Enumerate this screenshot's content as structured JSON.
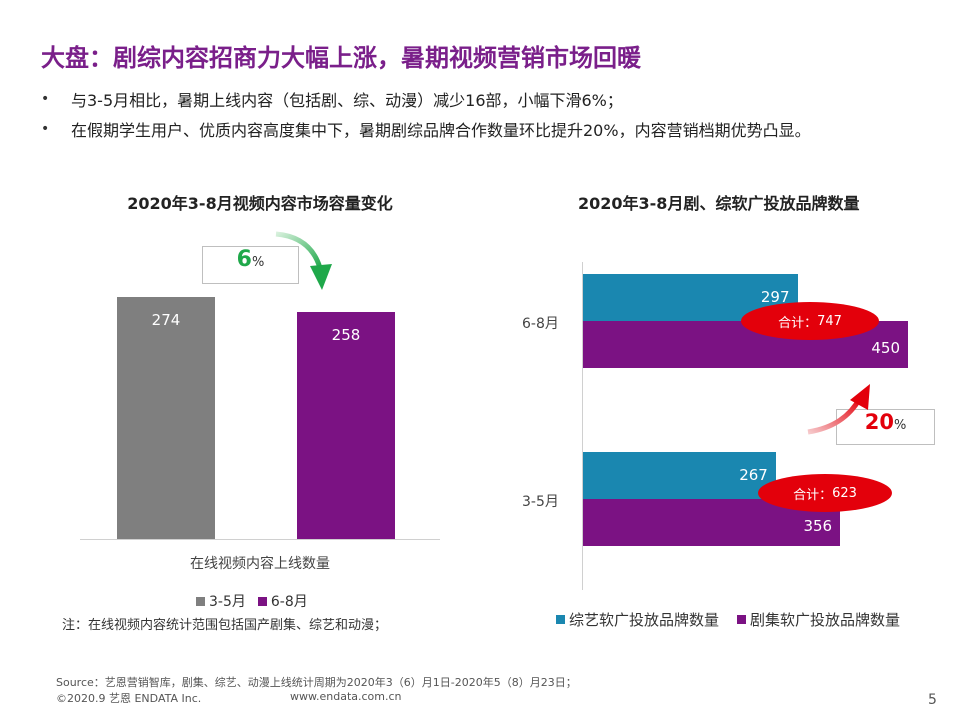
{
  "header": {
    "title": "大盘：剧综内容招商力大幅上涨，暑期视频营销市场回暖",
    "bullets": [
      "与3-5月相比，暑期上线内容（包括剧、综、动漫）减少16部，小幅下滑6%；",
      "在假期学生用户、优质内容高度集中下，暑期剧综品牌合作数量环比提升20%，内容营销档期优势凸显。"
    ],
    "bullet_symbol": "•"
  },
  "chart_data": [
    {
      "type": "bar",
      "title": "2020年3-8月视频内容市场容量变化",
      "xlabel": "在线视频内容上线数量",
      "ylabel": "",
      "categories": [
        "3-5月",
        "6-8月"
      ],
      "values": [
        274,
        258
      ],
      "colors": [
        "#7f7f7f",
        "#7b1283"
      ],
      "ylim": [
        0,
        300
      ],
      "legend": {
        "placement": "bottom",
        "entries": [
          "3-5月",
          "6-8月"
        ]
      },
      "annotation": {
        "value": "6",
        "unit": "%",
        "arrow": "down",
        "color": "#1fa84a"
      },
      "note": "注：在线视频内容统计范围包括国产剧集、综艺和动漫；",
      "grid": false
    },
    {
      "type": "bar",
      "orientation": "horizontal",
      "title": "2020年3-8月剧、综软广投放品牌数量",
      "categories": [
        "6-8月",
        "3-5月"
      ],
      "series": [
        {
          "name": "综艺软广投放品牌数量",
          "values": [
            297,
            267
          ],
          "color": "#1a87b0"
        },
        {
          "name": "剧集软广投放品牌数量",
          "values": [
            450,
            356
          ],
          "color": "#7b1283"
        }
      ],
      "totals": [
        {
          "label": "合计：",
          "value": "747"
        },
        {
          "label": "合计：",
          "value": "623"
        }
      ],
      "xlim": [
        0,
        500
      ],
      "legend": {
        "placement": "bottom"
      },
      "annotation": {
        "value": "20",
        "unit": "%",
        "arrow": "up",
        "color": "#e3000b"
      },
      "grid": false
    }
  ],
  "footer": {
    "source": "Source：艺恩营销智库，剧集、综艺、动漫上线统计周期为2020年3（6）月1日-2020年5（8）月23日；",
    "copyright": "©2020.9 艺恩 ENDATA Inc.",
    "website": "www.endata.com.cn",
    "page_number": "5"
  }
}
